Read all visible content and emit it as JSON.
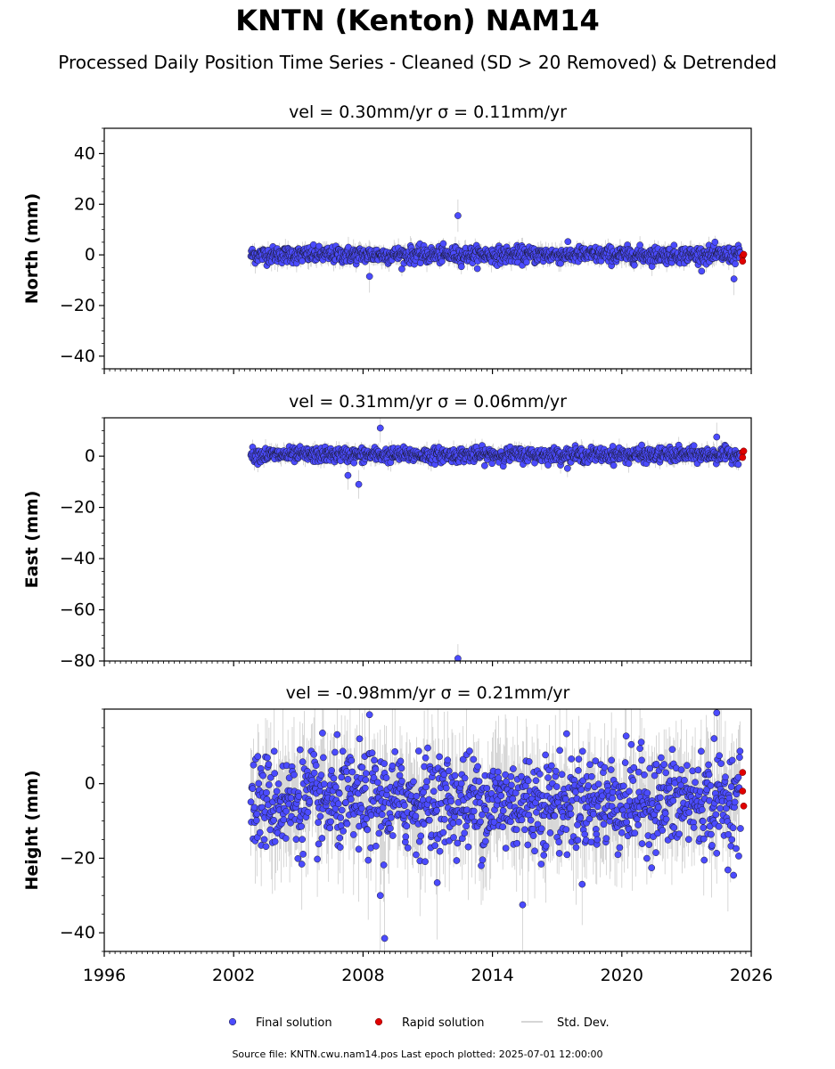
{
  "title": "KNTN (Kenton) NAM14",
  "subtitle": "Processed Daily Position Time Series - Cleaned (SD > 20 Removed) & Detrended",
  "footer": "Source file: KNTN.cwu.nam14.pos  Last epoch plotted: 2025-07-01 12:00:00",
  "colors": {
    "final": "#4b4bff",
    "rapid": "#e00000",
    "std": "#c8c8c8",
    "edge": "#1a1a2e"
  },
  "chart_data": [
    {
      "type": "scatter",
      "panel": "north",
      "title": "vel = 0.30mm/yr   σ = 0.11mm/yr",
      "xlabel": "",
      "ylabel": "North (mm)",
      "xlim": [
        1996,
        2026
      ],
      "ylim": [
        -45,
        50
      ],
      "yticks": [
        -40,
        -20,
        0,
        20,
        40
      ],
      "series_summary": {
        "start_year": 2002.8,
        "end_year": 2025.5,
        "baseline": 0,
        "noise_sd": 1.6
      },
      "outliers": [
        {
          "x": 2012.4,
          "y": 15.5
        },
        {
          "x": 2025.2,
          "y": -9.5
        },
        {
          "x": 2008.3,
          "y": -8.5
        }
      ],
      "rapid": [
        {
          "x": 2025.6,
          "y": -0.5
        },
        {
          "x": 2025.6,
          "y": -2.5
        },
        {
          "x": 2025.65,
          "y": 0.2
        }
      ]
    },
    {
      "type": "scatter",
      "panel": "east",
      "title": "vel = 0.31mm/yr   σ = 0.06mm/yr",
      "xlabel": "",
      "ylabel": "East (mm)",
      "xlim": [
        1996,
        2026
      ],
      "ylim": [
        -80,
        15
      ],
      "yticks": [
        -80,
        -60,
        -40,
        -20,
        0
      ],
      "series_summary": {
        "start_year": 2002.8,
        "end_year": 2025.5,
        "baseline": 0.5,
        "noise_sd": 1.4
      },
      "outliers": [
        {
          "x": 2012.4,
          "y": -79
        },
        {
          "x": 2008.8,
          "y": 11
        },
        {
          "x": 2007.8,
          "y": -11
        },
        {
          "x": 2007.3,
          "y": -7.5
        },
        {
          "x": 2024.4,
          "y": 7.5
        }
      ],
      "rapid": [
        {
          "x": 2025.6,
          "y": 1.5
        },
        {
          "x": 2025.6,
          "y": -0.5
        },
        {
          "x": 2025.65,
          "y": 2
        }
      ]
    },
    {
      "type": "scatter",
      "panel": "height",
      "title": "vel = -0.98mm/yr   σ = 0.21mm/yr",
      "xlabel": "",
      "ylabel": "Height (mm)",
      "xlim": [
        1996,
        2026
      ],
      "ylim": [
        -45,
        20
      ],
      "yticks": [
        -40,
        -20,
        0
      ],
      "xticks": [
        1996,
        2002,
        2008,
        2014,
        2020,
        2026
      ],
      "series_summary": {
        "start_year": 2002.8,
        "end_year": 2025.5,
        "baseline": -5,
        "noise_sd": 6.5
      },
      "outliers": [
        {
          "x": 2009.0,
          "y": -41.5
        },
        {
          "x": 2015.4,
          "y": -32.5
        },
        {
          "x": 2008.3,
          "y": 18.5
        },
        {
          "x": 2024.4,
          "y": 19
        },
        {
          "x": 2008.8,
          "y": -30
        }
      ],
      "rapid": [
        {
          "x": 2025.6,
          "y": 3
        },
        {
          "x": 2025.6,
          "y": -2
        },
        {
          "x": 2025.65,
          "y": -6
        }
      ]
    }
  ],
  "legend": {
    "placement": "bottom-center",
    "entries": [
      {
        "label": "Final solution",
        "kind": "final"
      },
      {
        "label": "Rapid solution",
        "kind": "rapid"
      },
      {
        "label": "Std. Dev.",
        "kind": "std"
      }
    ]
  }
}
